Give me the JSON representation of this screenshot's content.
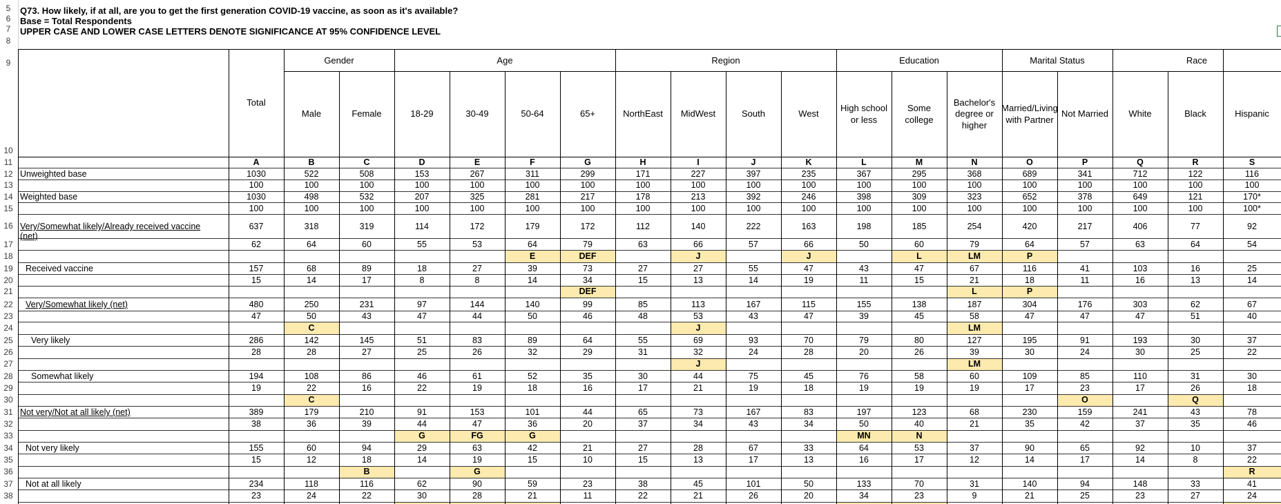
{
  "header": {
    "question": "Q73. How likely, if at all, are you to get the first generation COVID-19 vaccine, as soon as it's available?",
    "base": "Base = Total Respondents",
    "note": "UPPER CASE AND LOWER CASE LETTERS DENOTE SIGNIFICANCE AT 95% CONFIDENCE LEVEL"
  },
  "row_numbers": [
    "5",
    "6",
    "7",
    "8",
    "9",
    "10",
    "11",
    "12",
    "13",
    "14",
    "15",
    "16",
    "17",
    "18",
    "19",
    "20",
    "21",
    "22",
    "23",
    "24",
    "25",
    "26",
    "27",
    "28",
    "29",
    "30",
    "31",
    "32",
    "33",
    "34",
    "35",
    "36",
    "37",
    "38"
  ],
  "groups": [
    "Gender",
    "Age",
    "Region",
    "Education",
    "Marital Status",
    "Race"
  ],
  "column_headers": [
    "Total",
    "Male",
    "Female",
    "18-29",
    "30-49",
    "50-64",
    "65+",
    "NorthEast",
    "MidWest",
    "South",
    "West",
    "High school or less",
    "Some college",
    "Bachelor's degree or higher",
    "Married/Living with Partner",
    "Not Married",
    "White",
    "Black",
    "Hispanic"
  ],
  "column_letters": [
    "A",
    "B",
    "C",
    "D",
    "E",
    "F",
    "G",
    "H",
    "I",
    "J",
    "K",
    "L",
    "M",
    "N",
    "O",
    "P",
    "Q",
    "R",
    "S"
  ],
  "table": {
    "unweighted_base": {
      "label": "Unweighted base",
      "values": [
        "1030",
        "522",
        "508",
        "153",
        "267",
        "311",
        "299",
        "171",
        "227",
        "397",
        "235",
        "367",
        "295",
        "368",
        "689",
        "341",
        "712",
        "122",
        "116"
      ],
      "pct": [
        "100",
        "100",
        "100",
        "100",
        "100",
        "100",
        "100",
        "100",
        "100",
        "100",
        "100",
        "100",
        "100",
        "100",
        "100",
        "100",
        "100",
        "100",
        "100"
      ]
    },
    "weighted_base": {
      "label": "Weighted base",
      "values": [
        "1030",
        "498",
        "532",
        "207",
        "325",
        "281",
        "217",
        "178",
        "213",
        "392",
        "246",
        "398",
        "309",
        "323",
        "652",
        "378",
        "649",
        "121",
        "170*"
      ],
      "pct": [
        "100",
        "100",
        "100",
        "100",
        "100",
        "100",
        "100",
        "100",
        "100",
        "100",
        "100",
        "100",
        "100",
        "100",
        "100",
        "100",
        "100",
        "100",
        "100*"
      ]
    },
    "rows": [
      {
        "label": "Very/Somewhat likely/Already received vaccine (net)",
        "label_lines": [
          "Very/Somewhat likely/Already received vaccine",
          "(net)"
        ],
        "values": [
          "637",
          "318",
          "319",
          "114",
          "172",
          "179",
          "172",
          "112",
          "140",
          "222",
          "163",
          "198",
          "185",
          "254",
          "420",
          "217",
          "406",
          "77",
          "92"
        ],
        "pct": [
          "62",
          "64",
          "60",
          "55",
          "53",
          "64",
          "79",
          "63",
          "66",
          "57",
          "66",
          "50",
          "60",
          "79",
          "64",
          "57",
          "63",
          "64",
          "54"
        ],
        "sig": [
          "",
          "",
          "",
          "",
          "",
          "E",
          "DEF",
          "",
          "J",
          "",
          "J",
          "",
          "L",
          "LM",
          "P",
          "",
          "",
          "",
          ""
        ]
      },
      {
        "label": "Received vaccine",
        "values": [
          "157",
          "68",
          "89",
          "18",
          "27",
          "39",
          "73",
          "27",
          "27",
          "55",
          "47",
          "43",
          "47",
          "67",
          "116",
          "41",
          "103",
          "16",
          "25"
        ],
        "pct": [
          "15",
          "14",
          "17",
          "8",
          "8",
          "14",
          "34",
          "15",
          "13",
          "14",
          "19",
          "11",
          "15",
          "21",
          "18",
          "11",
          "16",
          "13",
          "14"
        ],
        "sig": [
          "",
          "",
          "",
          "",
          "",
          "",
          "DEF",
          "",
          "",
          "",
          "",
          "",
          "",
          "L",
          "P",
          "",
          "",
          "",
          ""
        ]
      },
      {
        "label": "Very/Somewhat likely (net)",
        "values": [
          "480",
          "250",
          "231",
          "97",
          "144",
          "140",
          "99",
          "85",
          "113",
          "167",
          "115",
          "155",
          "138",
          "187",
          "304",
          "176",
          "303",
          "62",
          "67"
        ],
        "pct": [
          "47",
          "50",
          "43",
          "47",
          "44",
          "50",
          "46",
          "48",
          "53",
          "43",
          "47",
          "39",
          "45",
          "58",
          "47",
          "47",
          "47",
          "51",
          "40"
        ],
        "sig": [
          "",
          "C",
          "",
          "",
          "",
          "",
          "",
          "",
          "J",
          "",
          "",
          "",
          "",
          "LM",
          "",
          "",
          "",
          "",
          ""
        ]
      },
      {
        "label": "Very likely",
        "values": [
          "286",
          "142",
          "145",
          "51",
          "83",
          "89",
          "64",
          "55",
          "69",
          "93",
          "70",
          "79",
          "80",
          "127",
          "195",
          "91",
          "193",
          "30",
          "37"
        ],
        "pct": [
          "28",
          "28",
          "27",
          "25",
          "26",
          "32",
          "29",
          "31",
          "32",
          "24",
          "28",
          "20",
          "26",
          "39",
          "30",
          "24",
          "30",
          "25",
          "22"
        ],
        "sig": [
          "",
          "",
          "",
          "",
          "",
          "",
          "",
          "",
          "J",
          "",
          "",
          "",
          "",
          "LM",
          "",
          "",
          "",
          "",
          ""
        ]
      },
      {
        "label": "Somewhat likely",
        "values": [
          "194",
          "108",
          "86",
          "46",
          "61",
          "52",
          "35",
          "30",
          "44",
          "75",
          "45",
          "76",
          "58",
          "60",
          "109",
          "85",
          "110",
          "31",
          "30"
        ],
        "pct": [
          "19",
          "22",
          "16",
          "22",
          "19",
          "18",
          "16",
          "17",
          "21",
          "19",
          "18",
          "19",
          "19",
          "19",
          "17",
          "23",
          "17",
          "26",
          "18"
        ],
        "sig": [
          "",
          "C",
          "",
          "",
          "",
          "",
          "",
          "",
          "",
          "",
          "",
          "",
          "",
          "",
          "",
          "O",
          "",
          "Q",
          ""
        ]
      },
      {
        "label": "Not very/Not at all likely (net)",
        "values": [
          "389",
          "179",
          "210",
          "91",
          "153",
          "101",
          "44",
          "65",
          "73",
          "167",
          "83",
          "197",
          "123",
          "68",
          "230",
          "159",
          "241",
          "43",
          "78"
        ],
        "pct": [
          "38",
          "36",
          "39",
          "44",
          "47",
          "36",
          "20",
          "37",
          "34",
          "43",
          "34",
          "50",
          "40",
          "21",
          "35",
          "42",
          "37",
          "35",
          "46"
        ],
        "sig": [
          "",
          "",
          "",
          "G",
          "FG",
          "G",
          "",
          "",
          "",
          "",
          "",
          "MN",
          "N",
          "",
          "",
          "",
          "",
          "",
          ""
        ]
      },
      {
        "label": "Not very likely",
        "values": [
          "155",
          "60",
          "94",
          "29",
          "63",
          "42",
          "21",
          "27",
          "28",
          "67",
          "33",
          "64",
          "53",
          "37",
          "90",
          "65",
          "92",
          "10",
          "37"
        ],
        "pct": [
          "15",
          "12",
          "18",
          "14",
          "19",
          "15",
          "10",
          "15",
          "13",
          "17",
          "13",
          "16",
          "17",
          "12",
          "14",
          "17",
          "14",
          "8",
          "22"
        ],
        "sig": [
          "",
          "",
          "B",
          "",
          "G",
          "",
          "",
          "",
          "",
          "",
          "",
          "",
          "",
          "",
          "",
          "",
          "",
          "",
          "R"
        ]
      },
      {
        "label": "Not at all likely",
        "values": [
          "234",
          "118",
          "116",
          "62",
          "90",
          "59",
          "23",
          "38",
          "45",
          "101",
          "50",
          "133",
          "70",
          "31",
          "140",
          "94",
          "148",
          "33",
          "41"
        ],
        "pct": [
          "23",
          "24",
          "22",
          "30",
          "28",
          "21",
          "11",
          "22",
          "21",
          "26",
          "20",
          "34",
          "23",
          "9",
          "21",
          "25",
          "23",
          "27",
          "24"
        ]
      }
    ]
  },
  "colors": {
    "highlight": "#fdeaae",
    "grid": "#000000",
    "gutter": "#d0d0d0",
    "cursor": "#2f7d45"
  }
}
